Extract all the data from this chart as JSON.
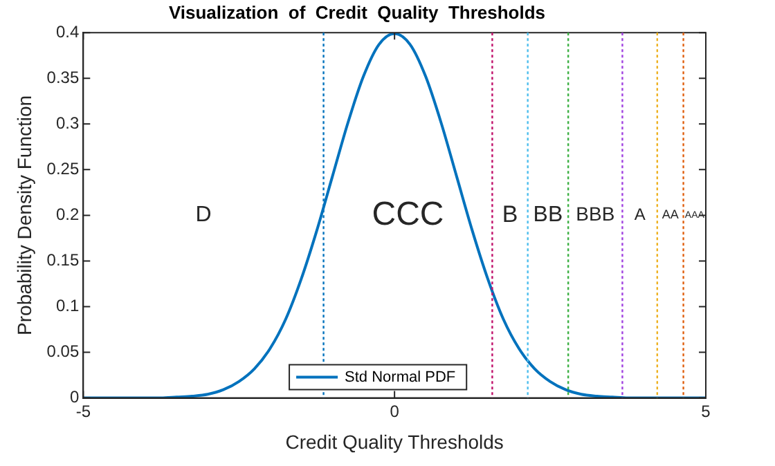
{
  "chart_data": {
    "type": "line",
    "title": "Visualization  of  Credit  Quality  Thresholds",
    "xlabel": "Credit Quality Thresholds",
    "ylabel": "Probability Density Function",
    "x": [
      -5,
      -4.5,
      -4,
      -3.75,
      -3.5,
      -3.25,
      -3,
      -2.75,
      -2.5,
      -2.25,
      -2,
      -1.75,
      -1.5,
      -1.25,
      -1,
      -0.75,
      -0.5,
      -0.25,
      0,
      0.25,
      0.5,
      0.75,
      1,
      1.25,
      1.5,
      1.75,
      2,
      2.25,
      2.5,
      2.75,
      3,
      3.25,
      3.5,
      3.75,
      4,
      4.5,
      5
    ],
    "series": [
      {
        "name": "Std Normal PDF",
        "color": "#0072bd",
        "values": [
          0,
          0,
          0,
          0,
          0.001,
          0.002,
          0.004,
          0.009,
          0.018,
          0.032,
          0.054,
          0.086,
          0.13,
          0.183,
          0.242,
          0.301,
          0.352,
          0.387,
          0.399,
          0.387,
          0.352,
          0.301,
          0.242,
          0.183,
          0.13,
          0.086,
          0.054,
          0.032,
          0.018,
          0.009,
          0.004,
          0.002,
          0.001,
          0,
          0,
          0,
          0
        ]
      }
    ],
    "xlim": [
      -5,
      5
    ],
    "xticks": [
      -5,
      0,
      5
    ],
    "ylim": [
      0,
      0.4
    ],
    "yticks": [
      0,
      0.05,
      0.1,
      0.15,
      0.2,
      0.25,
      0.3,
      0.35,
      0.4
    ],
    "grid": false,
    "legend": "bottom",
    "marker": "none",
    "line_style": "solid",
    "ref_lines": [
      {
        "axis": "x",
        "value": -1.14,
        "color": "#0072bd",
        "line_style": "dotted"
      },
      {
        "axis": "x",
        "value": 1.57,
        "color": "#c0106a",
        "line_style": "dotted"
      },
      {
        "axis": "x",
        "value": 2.14,
        "color": "#4dbeee",
        "line_style": "dotted"
      },
      {
        "axis": "x",
        "value": 2.79,
        "color": "#3cb043",
        "line_style": "dotted"
      },
      {
        "axis": "x",
        "value": 3.66,
        "color": "#a040e0",
        "line_style": "dotted"
      },
      {
        "axis": "x",
        "value": 4.22,
        "color": "#edb120",
        "line_style": "dotted"
      },
      {
        "axis": "x",
        "value": 4.64,
        "color": "#e06010",
        "line_style": "dotted"
      }
    ],
    "annotations": [
      "D",
      "CCC",
      "B",
      "BB",
      "BBB",
      "A",
      "AA",
      "AAA"
    ]
  }
}
